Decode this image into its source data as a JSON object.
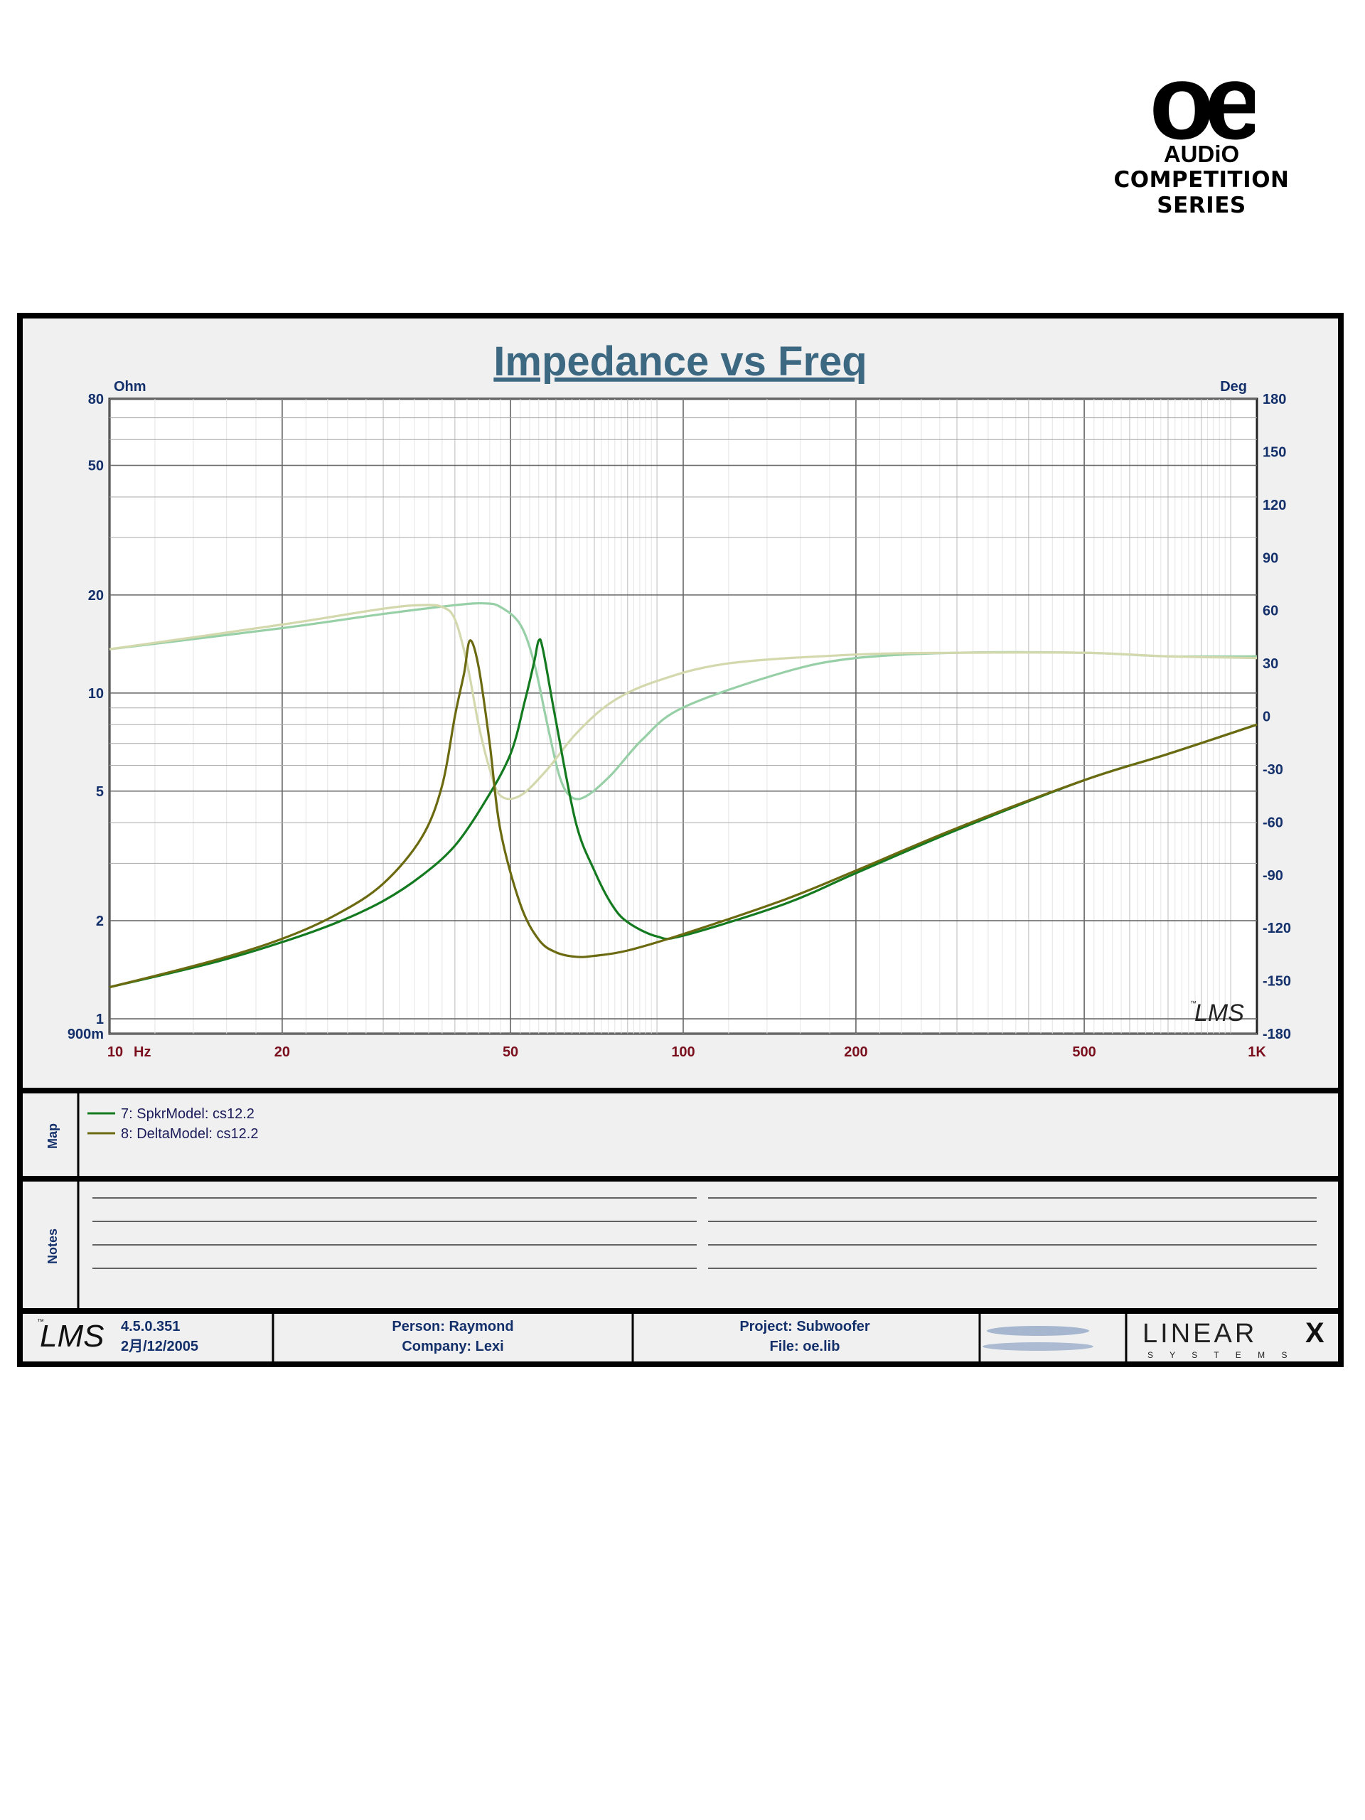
{
  "brand": {
    "logo_mark": "oe",
    "logo_sub": "AUDiO",
    "series_line1": "COMPETITION",
    "series_line2": "SERIES"
  },
  "chart_data": {
    "type": "line",
    "title": "Impedance vs Freq",
    "xscale": "log",
    "yscale": "log",
    "xlim": [
      10,
      1000
    ],
    "ylim": [
      0.9,
      80
    ],
    "y2lim": [
      -180,
      180
    ],
    "left_unit": "Ohm",
    "right_unit": "Deg",
    "x_unit": "Hz",
    "x_ticks": [
      {
        "v": 10,
        "label": "10"
      },
      {
        "v": 20,
        "label": "20"
      },
      {
        "v": 50,
        "label": "50"
      },
      {
        "v": 100,
        "label": "100"
      },
      {
        "v": 200,
        "label": "200"
      },
      {
        "v": 500,
        "label": "500"
      },
      {
        "v": 1000,
        "label": "1K"
      }
    ],
    "y_ticks": [
      {
        "v": 80,
        "label": "80"
      },
      {
        "v": 50,
        "label": "50"
      },
      {
        "v": 20,
        "label": "20"
      },
      {
        "v": 10,
        "label": "10"
      },
      {
        "v": 5,
        "label": "5"
      },
      {
        "v": 2,
        "label": "2"
      },
      {
        "v": 1,
        "label": "1"
      },
      {
        "v": 0.9,
        "label": "900m"
      }
    ],
    "y2_ticks": [
      180,
      150,
      120,
      90,
      60,
      30,
      0,
      -30,
      -60,
      -90,
      -120,
      -150,
      -180
    ],
    "grid": true,
    "watermark": "LMS",
    "series": [
      {
        "name": "7: SpkrModel: cs12.2",
        "color": "#137a1f",
        "phase_color": "#97cfa6",
        "impedance": [
          [
            10,
            1.25
          ],
          [
            15,
            1.48
          ],
          [
            20,
            1.72
          ],
          [
            25,
            1.98
          ],
          [
            30,
            2.3
          ],
          [
            35,
            2.75
          ],
          [
            40,
            3.4
          ],
          [
            45,
            4.6
          ],
          [
            50,
            6.5
          ],
          [
            53,
            9.5
          ],
          [
            55,
            12.5
          ],
          [
            56,
            14.5
          ],
          [
            57,
            13.5
          ],
          [
            60,
            8.2
          ],
          [
            65,
            4.0
          ],
          [
            70,
            2.85
          ],
          [
            75,
            2.25
          ],
          [
            80,
            1.98
          ],
          [
            90,
            1.79
          ],
          [
            100,
            1.8
          ],
          [
            150,
            2.25
          ],
          [
            200,
            2.8
          ],
          [
            300,
            3.8
          ],
          [
            500,
            5.4
          ],
          [
            700,
            6.5
          ],
          [
            1000,
            8.0
          ]
        ],
        "phase": [
          [
            10,
            38
          ],
          [
            20,
            50
          ],
          [
            30,
            58
          ],
          [
            40,
            63
          ],
          [
            45,
            64
          ],
          [
            48,
            62
          ],
          [
            52,
            52
          ],
          [
            55,
            30
          ],
          [
            58,
            -5
          ],
          [
            61,
            -35
          ],
          [
            64,
            -46
          ],
          [
            68,
            -45
          ],
          [
            75,
            -33
          ],
          [
            85,
            -13
          ],
          [
            100,
            5
          ],
          [
            150,
            25
          ],
          [
            200,
            33
          ],
          [
            300,
            36
          ],
          [
            500,
            36
          ],
          [
            700,
            34
          ],
          [
            1000,
            34
          ]
        ]
      },
      {
        "name": "8: DeltaModel: cs12.2",
        "color": "#6b6a10",
        "phase_color": "#d3d8ad",
        "impedance": [
          [
            10,
            1.25
          ],
          [
            15,
            1.5
          ],
          [
            20,
            1.76
          ],
          [
            25,
            2.1
          ],
          [
            30,
            2.6
          ],
          [
            35,
            3.6
          ],
          [
            38,
            5.2
          ],
          [
            40,
            8.5
          ],
          [
            41.5,
            11.5
          ],
          [
            42.5,
            14.5
          ],
          [
            44,
            12
          ],
          [
            46,
            7
          ],
          [
            48,
            3.8
          ],
          [
            52,
            2.25
          ],
          [
            56,
            1.75
          ],
          [
            60,
            1.6
          ],
          [
            65,
            1.55
          ],
          [
            70,
            1.56
          ],
          [
            80,
            1.62
          ],
          [
            100,
            1.82
          ],
          [
            150,
            2.32
          ],
          [
            200,
            2.85
          ],
          [
            300,
            3.85
          ],
          [
            500,
            5.4
          ],
          [
            700,
            6.5
          ],
          [
            1000,
            8.0
          ]
        ],
        "phase": [
          [
            10,
            38
          ],
          [
            20,
            52
          ],
          [
            30,
            61
          ],
          [
            35,
            63
          ],
          [
            38,
            62
          ],
          [
            40,
            55
          ],
          [
            42,
            30
          ],
          [
            44,
            -5
          ],
          [
            46,
            -30
          ],
          [
            48,
            -45
          ],
          [
            52,
            -45
          ],
          [
            58,
            -30
          ],
          [
            65,
            -10
          ],
          [
            75,
            8
          ],
          [
            90,
            20
          ],
          [
            120,
            30
          ],
          [
            200,
            35
          ],
          [
            300,
            36
          ],
          [
            500,
            36
          ],
          [
            700,
            34
          ],
          [
            1000,
            33
          ]
        ]
      }
    ]
  },
  "map": {
    "label": "Map",
    "items": [
      "7: SpkrModel: cs12.2",
      "8: DeltaModel: cs12.2"
    ]
  },
  "notes": {
    "label": "Notes"
  },
  "footer": {
    "version": "4.5.0.351",
    "date": "2月/12/2005",
    "person": "Person: Raymond",
    "company": "Company: Lexi",
    "project": "Project: Subwoofer",
    "file": "File: oe.lib",
    "linear_logo": "LINEAR",
    "linear_x": "X",
    "linear_sub": "S Y S T E M S"
  },
  "lms_mark": "LMS",
  "tm_mark": "™"
}
